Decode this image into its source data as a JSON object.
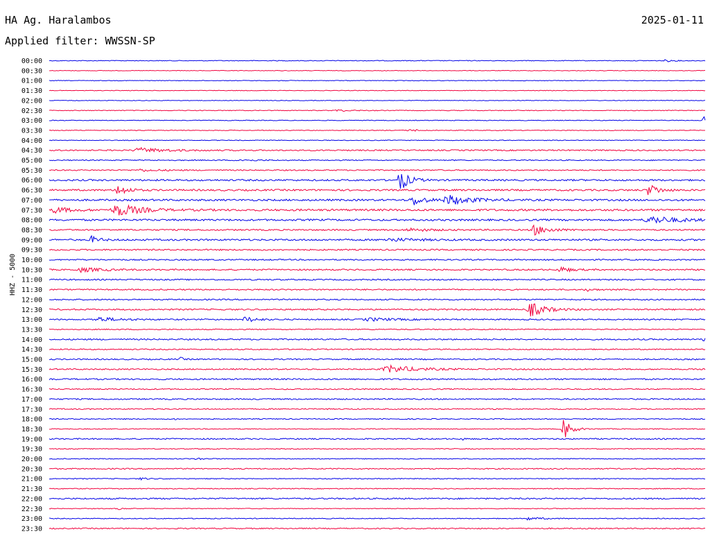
{
  "header": {
    "station": "HA Ag. Haralambos",
    "filter": "Applied filter: WWSSN-SP",
    "date": "2025-01-11"
  },
  "chart_data": {
    "type": "line",
    "chart_kind": "helicorder (24h drum seismogram)",
    "channel_label": "HHZ - 5000",
    "row_interval_minutes": 30,
    "colors": {
      "even_row": "#0000e6",
      "odd_row": "#f0003c"
    },
    "row_labels": [
      "00:00",
      "00:30",
      "01:00",
      "01:30",
      "02:00",
      "02:30",
      "03:00",
      "03:30",
      "04:00",
      "04:30",
      "05:00",
      "05:30",
      "06:00",
      "06:30",
      "07:00",
      "07:30",
      "08:00",
      "08:30",
      "09:00",
      "09:30",
      "10:00",
      "10:30",
      "11:00",
      "11:30",
      "12:00",
      "12:30",
      "13:00",
      "13:30",
      "14:00",
      "14:30",
      "15:00",
      "15:30",
      "16:00",
      "16:30",
      "17:00",
      "17:30",
      "18:00",
      "18:30",
      "19:00",
      "19:30",
      "20:00",
      "20:30",
      "21:00",
      "21:30",
      "22:00",
      "22:30",
      "23:00",
      "23:30"
    ],
    "background_noise": [
      0.5,
      0.4,
      0.4,
      0.4,
      0.4,
      0.5,
      0.5,
      0.5,
      0.5,
      0.9,
      0.7,
      0.8,
      1.2,
      1.2,
      1.3,
      1.4,
      1.3,
      1.0,
      1.2,
      1.0,
      0.9,
      1.0,
      0.9,
      0.9,
      0.9,
      1.0,
      0.9,
      0.7,
      1.0,
      0.8,
      0.9,
      0.9,
      1.0,
      0.8,
      0.9,
      0.8,
      0.7,
      0.6,
      0.9,
      0.6,
      0.6,
      0.8,
      0.6,
      0.6,
      1.0,
      0.5,
      0.6,
      0.8
    ],
    "events": [
      {
        "row": 0,
        "pos": 0.94,
        "amp": 1.5,
        "width": 0.01
      },
      {
        "row": 2,
        "pos": 0.35,
        "amp": 1.5,
        "width": 0.003
      },
      {
        "row": 5,
        "pos": 0.44,
        "amp": 1.2,
        "width": 0.02
      },
      {
        "row": 6,
        "pos": 0.998,
        "amp": 5,
        "width": 0.006
      },
      {
        "row": 7,
        "pos": 0.55,
        "amp": 2,
        "width": 0.01
      },
      {
        "row": 9,
        "pos": 0.14,
        "amp": 3,
        "width": 0.04
      },
      {
        "row": 10,
        "pos": 0.29,
        "amp": 1.5,
        "width": 0.02
      },
      {
        "row": 11,
        "pos": 0.14,
        "amp": 1.5,
        "width": 0.03
      },
      {
        "row": 12,
        "pos": 0.535,
        "amp": 16,
        "width": 0.012
      },
      {
        "row": 13,
        "pos": 0.105,
        "amp": 9,
        "width": 0.012
      },
      {
        "row": 13,
        "pos": 0.915,
        "amp": 10,
        "width": 0.012
      },
      {
        "row": 14,
        "pos": 0.555,
        "amp": 8,
        "width": 0.015
      },
      {
        "row": 14,
        "pos": 0.61,
        "amp": 7,
        "width": 0.03
      },
      {
        "row": 15,
        "pos": 0.105,
        "amp": 9,
        "width": 0.03
      },
      {
        "row": 15,
        "pos": 0.01,
        "amp": 4,
        "width": 0.02
      },
      {
        "row": 16,
        "pos": 0.92,
        "amp": 5,
        "width": 0.04
      },
      {
        "row": 17,
        "pos": 0.74,
        "amp": 7,
        "width": 0.02
      },
      {
        "row": 17,
        "pos": 0.55,
        "amp": 2,
        "width": 0.03
      },
      {
        "row": 18,
        "pos": 0.065,
        "amp": 5,
        "width": 0.01
      },
      {
        "row": 18,
        "pos": 0.52,
        "amp": 2,
        "width": 0.04
      },
      {
        "row": 21,
        "pos": 0.05,
        "amp": 3,
        "width": 0.03
      },
      {
        "row": 21,
        "pos": 0.78,
        "amp": 4,
        "width": 0.015
      },
      {
        "row": 23,
        "pos": 0.82,
        "amp": 2,
        "width": 0.01
      },
      {
        "row": 25,
        "pos": 0.735,
        "amp": 10,
        "width": 0.02
      },
      {
        "row": 26,
        "pos": 0.075,
        "amp": 3,
        "width": 0.03
      },
      {
        "row": 26,
        "pos": 0.3,
        "amp": 4,
        "width": 0.015
      },
      {
        "row": 26,
        "pos": 0.49,
        "amp": 2,
        "width": 0.04
      },
      {
        "row": 28,
        "pos": 0.998,
        "amp": 3,
        "width": 0.005
      },
      {
        "row": 30,
        "pos": 0.2,
        "amp": 3,
        "width": 0.004
      },
      {
        "row": 31,
        "pos": 0.52,
        "amp": 5,
        "width": 0.04
      },
      {
        "row": 36,
        "pos": 0.19,
        "amp": 1.5,
        "width": 0.003
      },
      {
        "row": 37,
        "pos": 0.785,
        "amp": 16,
        "width": 0.01
      },
      {
        "row": 38,
        "pos": 0.63,
        "amp": 2,
        "width": 0.003
      },
      {
        "row": 40,
        "pos": 0.225,
        "amp": 2,
        "width": 0.008
      },
      {
        "row": 42,
        "pos": 0.14,
        "amp": 2,
        "width": 0.008
      },
      {
        "row": 45,
        "pos": 0.105,
        "amp": 1.5,
        "width": 0.008
      },
      {
        "row": 46,
        "pos": 0.73,
        "amp": 2,
        "width": 0.02
      }
    ]
  }
}
